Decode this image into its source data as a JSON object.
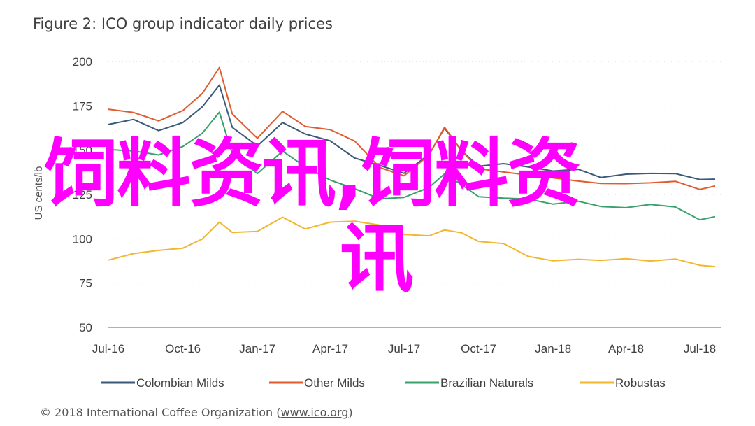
{
  "title": "Figure 2: ICO group indicator daily prices",
  "footer": {
    "prefix": "© 2018 International Coffee Organization (",
    "link": "www.ico.org",
    "suffix": ")"
  },
  "watermark": {
    "line1": "饲料资讯,饲料资",
    "line2": "讯",
    "color": "#ff00ff"
  },
  "chart_data": {
    "type": "line",
    "ylabel": "US cents/lb",
    "ylim": [
      50,
      200
    ],
    "yticks": [
      "200",
      "175",
      "150",
      "125",
      "100",
      "75",
      "50"
    ],
    "xticks": [
      "Jul-16",
      "Oct-16",
      "Jan-17",
      "Apr-17",
      "Jul-17",
      "Oct-17",
      "Jan-18",
      "Apr-18",
      "Jul-18"
    ],
    "x": [
      "2016-07-01",
      "2016-08-01",
      "2016-09-01",
      "2016-10-01",
      "2016-10-25",
      "2016-11-15",
      "2016-12-01",
      "2017-01-01",
      "2017-02-01",
      "2017-03-01",
      "2017-04-01",
      "2017-05-01",
      "2017-06-01",
      "2017-07-01",
      "2017-08-01",
      "2017-08-20",
      "2017-09-10",
      "2017-10-01",
      "2017-11-01",
      "2017-12-01",
      "2018-01-01",
      "2018-02-01",
      "2018-03-01",
      "2018-04-01",
      "2018-05-01",
      "2018-06-01",
      "2018-07-01",
      "2018-07-20"
    ],
    "grid": true,
    "legend_position": "bottom",
    "series": [
      {
        "name": "Colombian Milds",
        "color": "#3b5a7a",
        "values": [
          165,
          167,
          161,
          166,
          174,
          187,
          163,
          152,
          166,
          159,
          155,
          146,
          141,
          137,
          148,
          162,
          150,
          141,
          142,
          141,
          138,
          139,
          135,
          136,
          137,
          137,
          133,
          134
        ]
      },
      {
        "name": "Other Milds",
        "color": "#e15b2e",
        "values": [
          173,
          171,
          167,
          172,
          182,
          197,
          170,
          157,
          172,
          163,
          162,
          155,
          140,
          136,
          147,
          163,
          150,
          139,
          138,
          136,
          134,
          133,
          131,
          131,
          132,
          132,
          128,
          130
        ]
      },
      {
        "name": "Brazilian Naturals",
        "color": "#3aa06c",
        "values": [
          150,
          150,
          147,
          152,
          160,
          171,
          148,
          137,
          149,
          141,
          133,
          128,
          123,
          123,
          129,
          137,
          130,
          124,
          123,
          122,
          120,
          121,
          118,
          118,
          119,
          118,
          111,
          112
        ]
      },
      {
        "name": "Robustas",
        "color": "#f2b630",
        "values": [
          88,
          92,
          93,
          95,
          100,
          109,
          104,
          104,
          112,
          106,
          109,
          110,
          108,
          102,
          102,
          105,
          103,
          99,
          97,
          90,
          88,
          88,
          88,
          89,
          87,
          89,
          85,
          84
        ]
      }
    ]
  }
}
